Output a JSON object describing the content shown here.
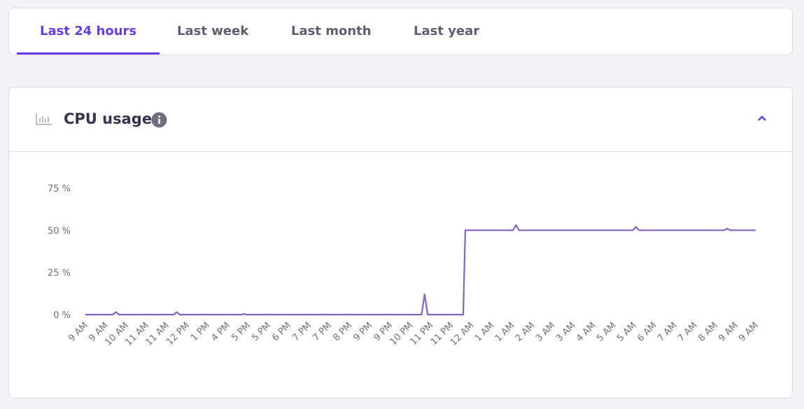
{
  "tabs": [
    "Last 24 hours",
    "Last week",
    "Last month",
    "Last year"
  ],
  "active_tab": 0,
  "card": {
    "title": "CPU usage"
  },
  "chart_data": {
    "type": "line",
    "color": "#7f63c9",
    "x": [
      0,
      1.35,
      1.5,
      1.65,
      4.35,
      4.5,
      4.65,
      7.7,
      7.8,
      7.9,
      16.55,
      16.7,
      16.85,
      18.6,
      18.7,
      21.05,
      21.2,
      21.35,
      26.95,
      27.1,
      27.25,
      31.45,
      31.6,
      31.75,
      33
    ],
    "values": [
      0,
      0,
      1.5,
      0,
      0,
      1.5,
      0,
      0,
      0.5,
      0,
      0,
      12,
      0,
      0,
      50,
      50,
      53,
      50,
      50,
      52,
      50,
      50,
      51,
      50,
      50
    ],
    "xlim": [
      0,
      33
    ],
    "xticks": [
      {
        "value": 0,
        "label": "9 AM"
      },
      {
        "value": 1,
        "label": "9 AM"
      },
      {
        "value": 2,
        "label": "10 AM"
      },
      {
        "value": 3,
        "label": "11 AM"
      },
      {
        "value": 4,
        "label": "11 AM"
      },
      {
        "value": 5,
        "label": "12 PM"
      },
      {
        "value": 6,
        "label": "1 PM"
      },
      {
        "value": 7,
        "label": "4 PM"
      },
      {
        "value": 8,
        "label": "5 PM"
      },
      {
        "value": 9,
        "label": "5 PM"
      },
      {
        "value": 10,
        "label": "6 PM"
      },
      {
        "value": 11,
        "label": "7 PM"
      },
      {
        "value": 12,
        "label": "7 PM"
      },
      {
        "value": 13,
        "label": "8 PM"
      },
      {
        "value": 14,
        "label": "9 PM"
      },
      {
        "value": 15,
        "label": "9 PM"
      },
      {
        "value": 16,
        "label": "10 PM"
      },
      {
        "value": 17,
        "label": "11 PM"
      },
      {
        "value": 18,
        "label": "11 PM"
      },
      {
        "value": 19,
        "label": "12 AM"
      },
      {
        "value": 20,
        "label": "1 AM"
      },
      {
        "value": 21,
        "label": "1 AM"
      },
      {
        "value": 22,
        "label": "2 AM"
      },
      {
        "value": 23,
        "label": "3 AM"
      },
      {
        "value": 24,
        "label": "3 AM"
      },
      {
        "value": 25,
        "label": "4 AM"
      },
      {
        "value": 26,
        "label": "5 AM"
      },
      {
        "value": 27,
        "label": "5 AM"
      },
      {
        "value": 28,
        "label": "6 AM"
      },
      {
        "value": 29,
        "label": "7 AM"
      },
      {
        "value": 30,
        "label": "7 AM"
      },
      {
        "value": 31,
        "label": "8 AM"
      },
      {
        "value": 32,
        "label": "9 AM"
      },
      {
        "value": 33,
        "label": "9 AM"
      }
    ],
    "ylim": [
      0,
      75
    ],
    "yticks": [
      {
        "value": 0,
        "label": "0 %"
      },
      {
        "value": 25,
        "label": "25 %"
      },
      {
        "value": 50,
        "label": "50 %"
      },
      {
        "value": 75,
        "label": "75 %"
      }
    ],
    "grid": false
  }
}
